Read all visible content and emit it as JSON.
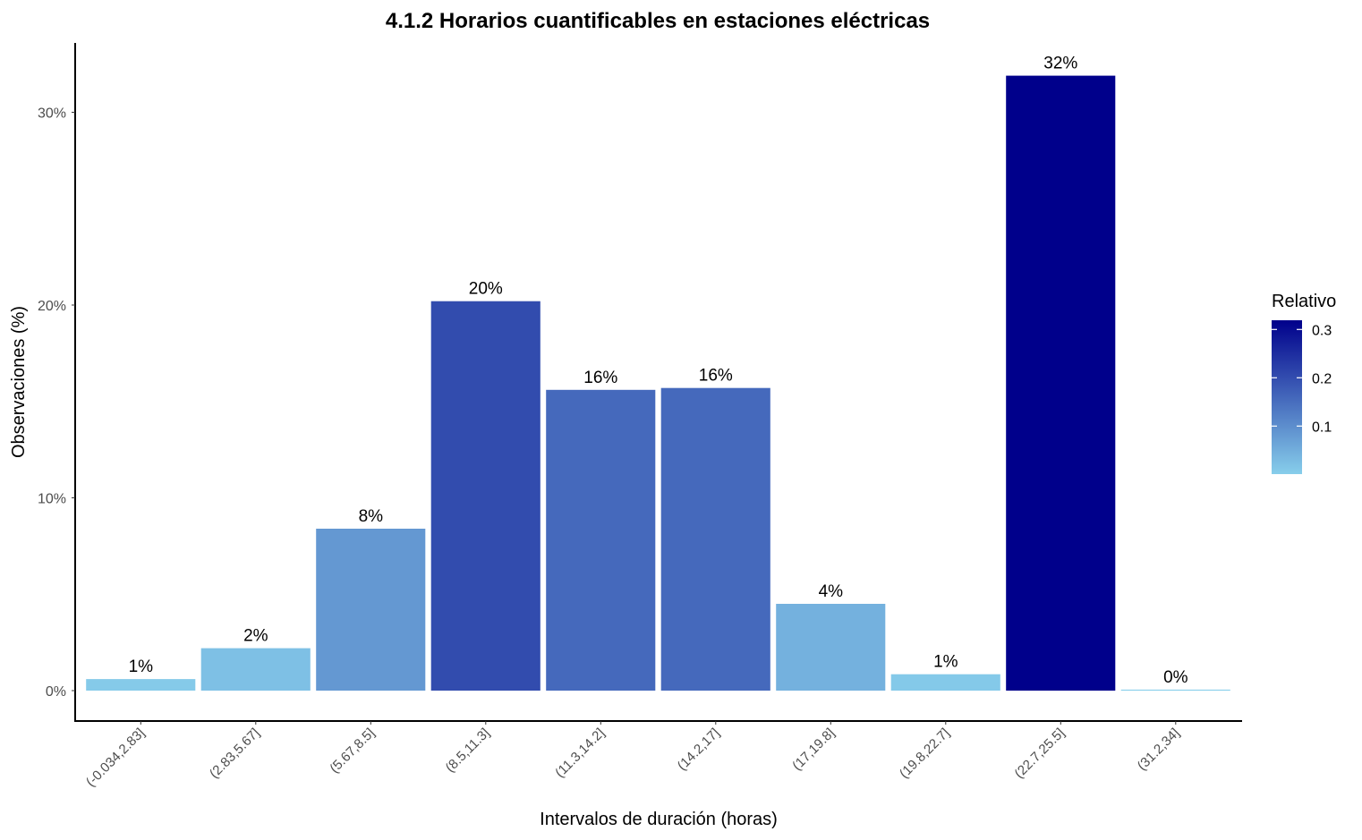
{
  "chart_data": {
    "type": "bar",
    "title": "4.1.2 Horarios cuantificables en estaciones eléctricas",
    "xlabel": "Intervalos de duración (horas)",
    "ylabel": "Observaciones (%)",
    "categories": [
      "(-0.034,2.83]",
      "(2.83,5.67]",
      "(5.67,8.5]",
      "(8.5,11.3]",
      "(11.3,14.2]",
      "(14.2,17]",
      "(17,19.8]",
      "(19.8,22.7]",
      "(22.7,25.5]",
      "(31.2,34]"
    ],
    "values": [
      0.6,
      2.2,
      8.4,
      20.2,
      15.6,
      15.7,
      4.5,
      0.85,
      31.9,
      0.05
    ],
    "data_labels": [
      "1%",
      "2%",
      "8%",
      "20%",
      "16%",
      "16%",
      "4%",
      "1%",
      "32%",
      "0%"
    ],
    "ylim": [
      -1.5,
      33.3
    ],
    "yticks": [
      0,
      10,
      20,
      30
    ],
    "ytick_labels": [
      "0%",
      "10%",
      "20%",
      "30%"
    ],
    "grid": false,
    "legend": {
      "title": "Relativo",
      "placement": "right",
      "type": "colorbar",
      "range": [
        0.0005,
        0.319
      ],
      "ticks": [
        0.1,
        0.2,
        0.3
      ],
      "tick_labels": [
        "0.1",
        "0.2",
        "0.3"
      ],
      "color_low": "#87ceeb",
      "color_high": "#00008b"
    }
  }
}
